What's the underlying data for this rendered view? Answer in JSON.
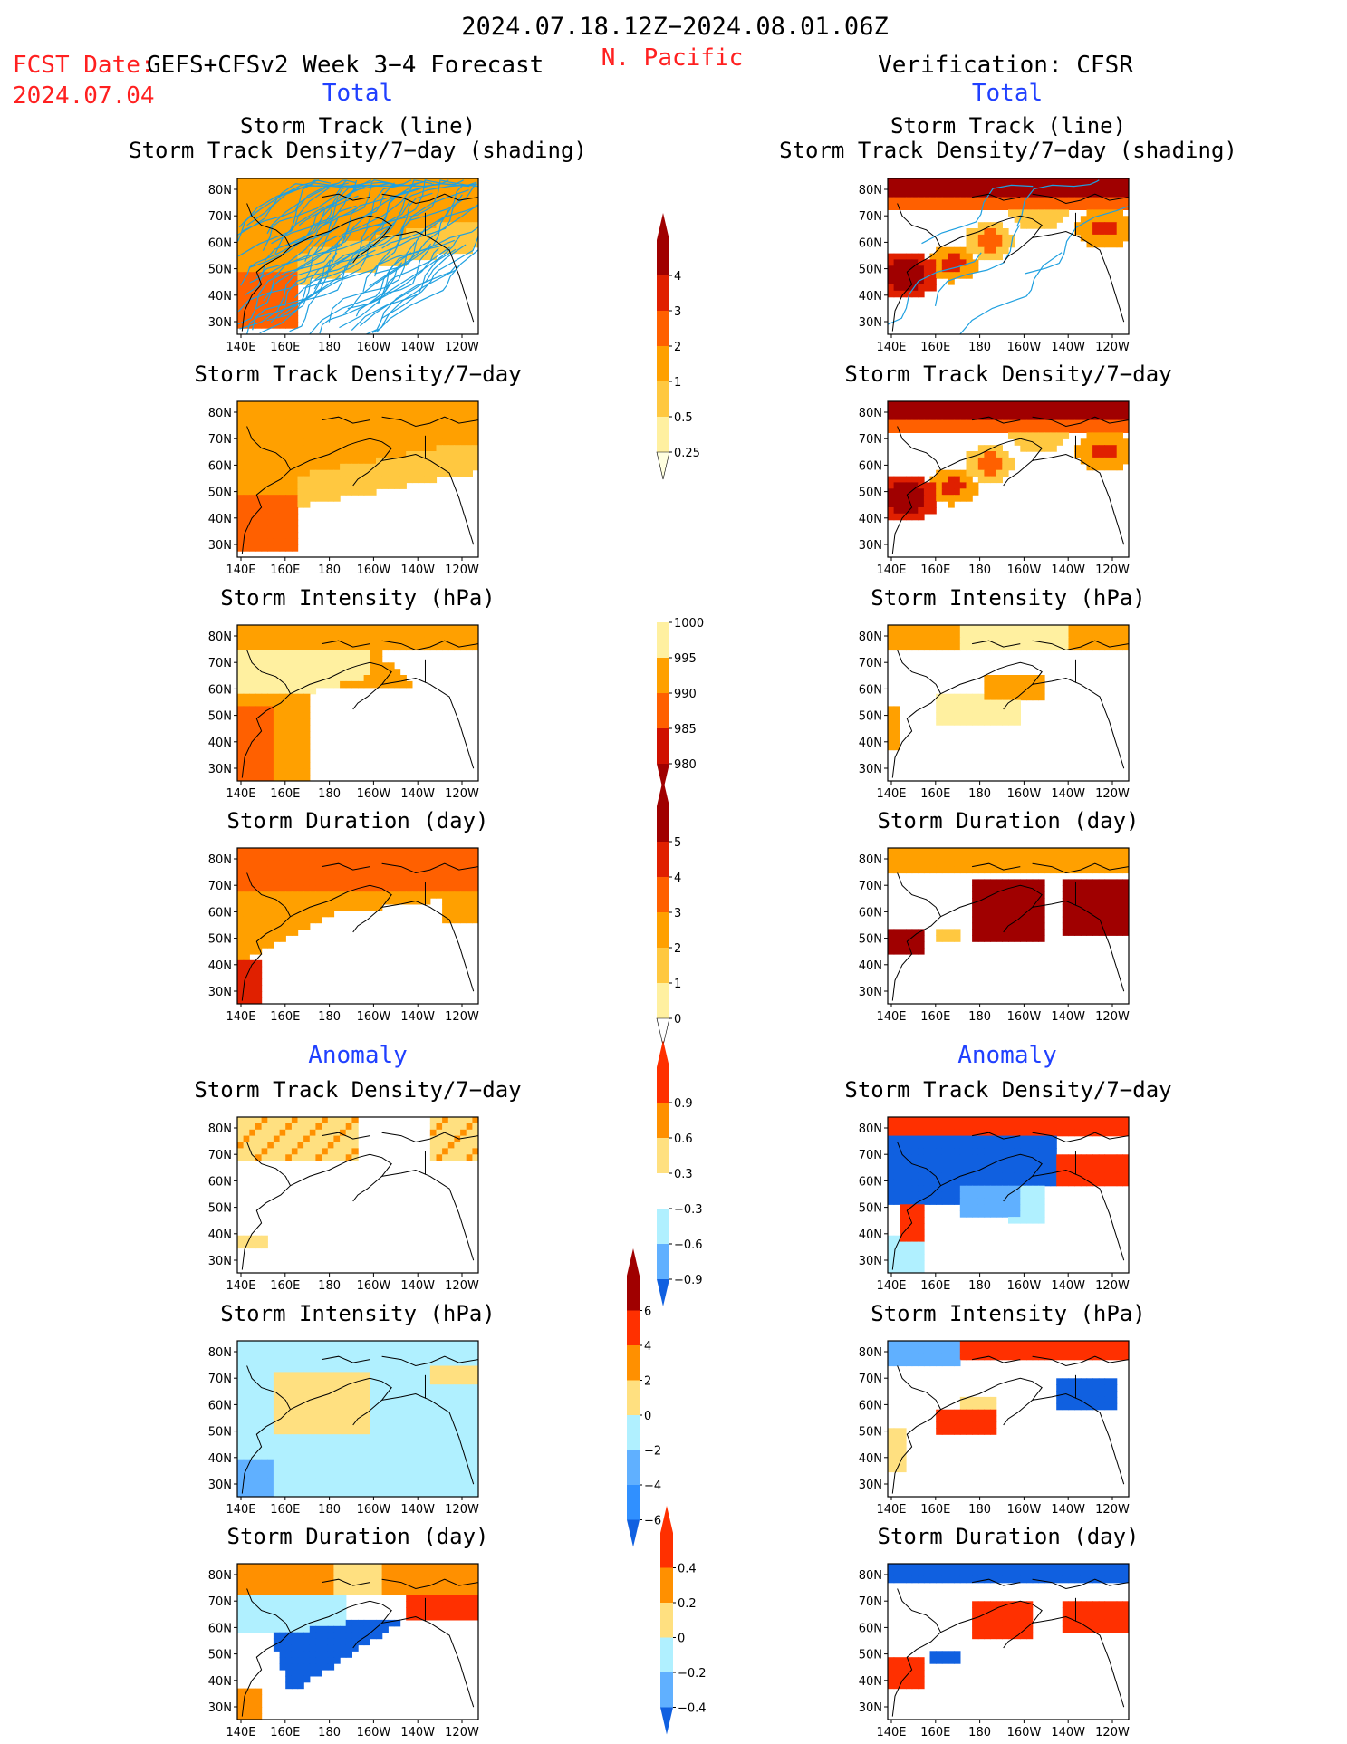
{
  "header": {
    "period": "2024.07.18.12Z−2024.08.01.06Z",
    "fcst_label": "FCST Date:",
    "fcst_model": "GEFS+CFSv2 Week 3−4 Forecast",
    "fcst_date": "2024.07.04",
    "region": "N. Pacific",
    "verification": "Verification: CFSR",
    "total_left": "Total",
    "total_right": "Total",
    "anomaly_left": "Anomaly",
    "anomaly_right": "Anomaly"
  },
  "colors": {
    "red_text": "#ff2020",
    "blue_text": "#2040ff",
    "land_line": "#000000",
    "track_line": "#1fa0e0"
  },
  "chart_data": {
    "type": "heatmap",
    "map": {
      "lon_ticks": [
        "140E",
        "160E",
        "180",
        "160W",
        "140W",
        "120W"
      ],
      "lat_ticks": [
        "80N",
        "70N",
        "60N",
        "50N",
        "40N",
        "30N"
      ]
    },
    "colorbars": [
      {
        "id": "density_total",
        "levels": [
          "4",
          "3",
          "2",
          "1",
          "0.5",
          "0.25"
        ],
        "colors": [
          "#a00000",
          "#e02000",
          "#ff6000",
          "#ffa000",
          "#ffc840",
          "#fff0a0",
          "#ffffe0"
        ]
      },
      {
        "id": "intensity_total",
        "levels": [
          "1000",
          "995",
          "990",
          "985",
          "980"
        ],
        "colors": [
          "#ffffff",
          "#fff0a0",
          "#ffa000",
          "#ff6000",
          "#d01000",
          "#a00000"
        ]
      },
      {
        "id": "duration_total",
        "levels": [
          "5",
          "4",
          "3",
          "2",
          "1",
          "0"
        ],
        "colors": [
          "#a00000",
          "#e02000",
          "#ff6000",
          "#ffa000",
          "#ffc840",
          "#fff0a0",
          "#ffffff"
        ]
      },
      {
        "id": "density_anom",
        "levels": [
          "0.9",
          "0.6",
          "0.3",
          "−0.3",
          "−0.6",
          "−0.9"
        ],
        "colors": [
          "#ff3000",
          "#ff9000",
          "#ffe080",
          "#ffffff",
          "#b0f0ff",
          "#60b0ff",
          "#1060e0"
        ]
      },
      {
        "id": "intensity_anom",
        "levels": [
          "6",
          "4",
          "2",
          "0",
          "−2",
          "−4",
          "−6"
        ],
        "colors": [
          "#a00000",
          "#ff3000",
          "#ff9000",
          "#ffe080",
          "#b0f0ff",
          "#60b0ff",
          "#3090ff",
          "#1060e0"
        ]
      },
      {
        "id": "duration_anom",
        "levels": [
          "0.4",
          "0.2",
          "0",
          "−0.2",
          "−0.4"
        ],
        "colors": [
          "#ff3000",
          "#ff9000",
          "#ffe080",
          "#b0f0ff",
          "#60b0ff",
          "#1060e0"
        ]
      }
    ],
    "panels": [
      {
        "id": "fc_track",
        "column": "forecast",
        "title": [
          "Storm Track (line)",
          "Storm Track Density/7−day (shading)"
        ]
      },
      {
        "id": "vf_track",
        "column": "verification",
        "title": [
          "Storm Track (line)",
          "Storm Track Density/7−day (shading)"
        ]
      },
      {
        "id": "fc_density",
        "column": "forecast",
        "title": [
          "Storm Track Density/7−day"
        ]
      },
      {
        "id": "vf_density",
        "column": "verification",
        "title": [
          "Storm Track Density/7−day"
        ]
      },
      {
        "id": "fc_intensity",
        "column": "forecast",
        "title": [
          "Storm Intensity (hPa)"
        ]
      },
      {
        "id": "vf_intensity",
        "column": "verification",
        "title": [
          "Storm Intensity (hPa)"
        ]
      },
      {
        "id": "fc_duration",
        "column": "forecast",
        "title": [
          "Storm Duration (day)"
        ]
      },
      {
        "id": "vf_duration",
        "column": "verification",
        "title": [
          "Storm Duration (day)"
        ]
      },
      {
        "id": "fc_density_anom",
        "column": "forecast",
        "title": [
          "Storm Track Density/7−day"
        ]
      },
      {
        "id": "vf_density_anom",
        "column": "verification",
        "title": [
          "Storm Track Density/7−day"
        ]
      },
      {
        "id": "fc_intensity_anom",
        "column": "forecast",
        "title": [
          "Storm Intensity (hPa)"
        ]
      },
      {
        "id": "vf_intensity_anom",
        "column": "verification",
        "title": [
          "Storm Intensity (hPa)"
        ]
      },
      {
        "id": "fc_duration_anom",
        "column": "forecast",
        "title": [
          "Storm Duration (day)"
        ]
      },
      {
        "id": "vf_duration_anom",
        "column": "verification",
        "title": [
          "Storm Duration (day)"
        ]
      }
    ]
  }
}
